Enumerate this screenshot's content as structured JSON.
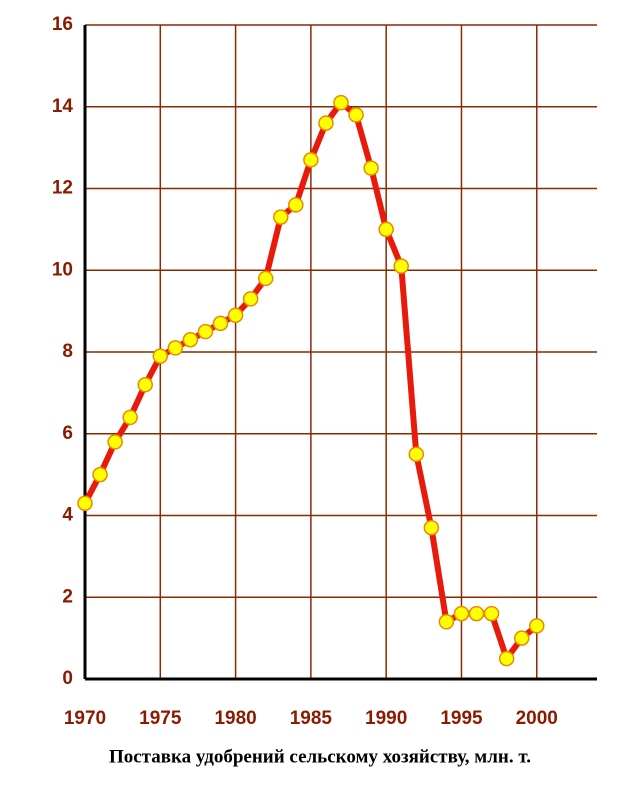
{
  "chart_data": {
    "type": "line",
    "title": "Поставка удобрений сельскому хозяйству, млн. т.",
    "x": [
      1970,
      1971,
      1972,
      1973,
      1974,
      1975,
      1976,
      1977,
      1978,
      1979,
      1980,
      1981,
      1982,
      1983,
      1984,
      1985,
      1986,
      1987,
      1988,
      1989,
      1990,
      1991,
      1992,
      1993,
      1994,
      1995,
      1996,
      1997,
      1998,
      1999,
      2000
    ],
    "series": [
      {
        "color": "#e81a0c",
        "marker_color": "#ffff00",
        "values": [
          4.3,
          5.0,
          5.8,
          6.4,
          7.2,
          7.9,
          8.1,
          8.3,
          8.5,
          8.7,
          8.9,
          9.3,
          9.8,
          11.3,
          11.6,
          12.7,
          13.6,
          14.1,
          13.8,
          12.5,
          11.0,
          10.1,
          5.5,
          3.7,
          1.4,
          1.6,
          1.6,
          1.6,
          0.5,
          1.0,
          1.3
        ]
      }
    ],
    "xlim": [
      1970,
      2004
    ],
    "xticks": [
      1970,
      1975,
      1980,
      1985,
      1990,
      1995,
      2000
    ],
    "ylim": [
      0,
      16
    ],
    "yticks": [
      0,
      2,
      4,
      6,
      8,
      10,
      12,
      14,
      16
    ],
    "grid": true,
    "grid_color": "#8b2a00"
  }
}
